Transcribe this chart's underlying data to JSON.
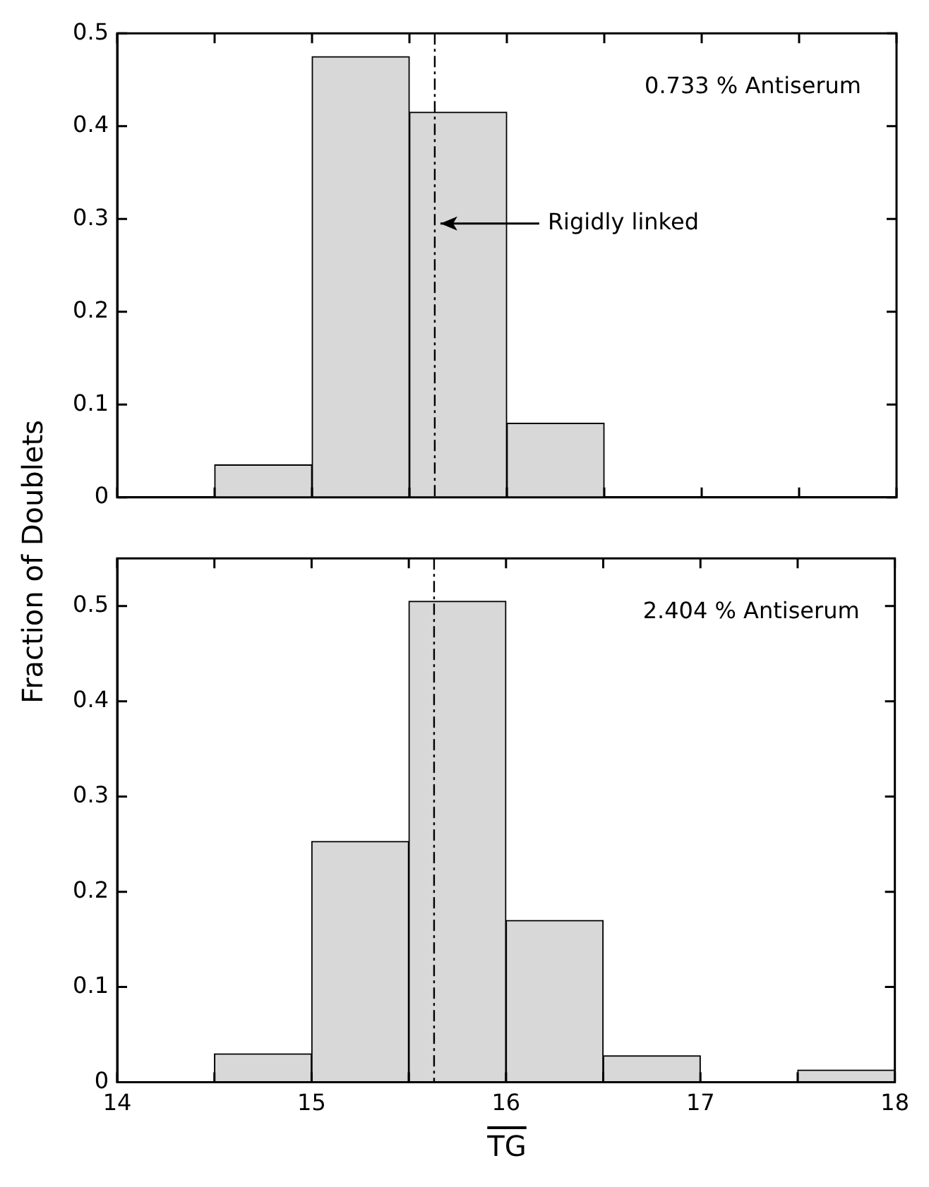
{
  "chart_data": [
    {
      "type": "histogram",
      "ylabel": "Fraction of Doublets",
      "bins": [
        14,
        14.5,
        15,
        15.5,
        16,
        16.5,
        17,
        17.5,
        18
      ],
      "values": [
        0,
        0.035,
        0.475,
        0.415,
        0.08,
        0,
        0,
        0
      ],
      "color": "#d8d8d8",
      "xlim": [
        14,
        18
      ],
      "xticks": [
        14,
        {
          "value": 14.5,
          "label": null
        },
        15,
        {
          "value": 15.5,
          "label": null
        },
        16,
        {
          "value": 16.5,
          "label": null
        },
        17,
        {
          "value": 17.5,
          "label": null
        },
        18
      ],
      "ylim": [
        0,
        0.5
      ],
      "yticks": [
        0,
        0.1,
        0.2,
        0.3,
        0.4,
        0.5
      ],
      "tick_labels": "y",
      "grid": false,
      "legend": false,
      "ref_lines": [
        {
          "axis": "x",
          "value": 15.63,
          "line_style": "dashed"
        }
      ],
      "annotations": [
        "0.733 % Antiserum",
        {
          "text": "Rigidly linked",
          "x": 15.63,
          "y": 0.295
        }
      ]
    },
    {
      "type": "histogram",
      "xlabel": "TG",
      "bins": [
        14,
        14.5,
        15,
        15.5,
        16,
        16.5,
        17,
        17.5,
        18
      ],
      "values": [
        0,
        0.03,
        0.253,
        0.505,
        0.17,
        0.028,
        0,
        0.013
      ],
      "color": "#d8d8d8",
      "xlim": [
        14,
        18
      ],
      "xticks": [
        14,
        {
          "value": 14.5,
          "label": null
        },
        15,
        {
          "value": 15.5,
          "label": null
        },
        16,
        {
          "value": 16.5,
          "label": null
        },
        17,
        {
          "value": 17.5,
          "label": null
        },
        18
      ],
      "ylim": [
        0,
        0.55
      ],
      "yticks": [
        0,
        0.1,
        0.2,
        0.3,
        0.4,
        0.5
      ],
      "grid": false,
      "legend": false,
      "ref_lines": [
        {
          "axis": "x",
          "value": 15.63,
          "line_style": "dashed"
        }
      ],
      "annotations": [
        "2.404 % Antiserum"
      ]
    }
  ]
}
